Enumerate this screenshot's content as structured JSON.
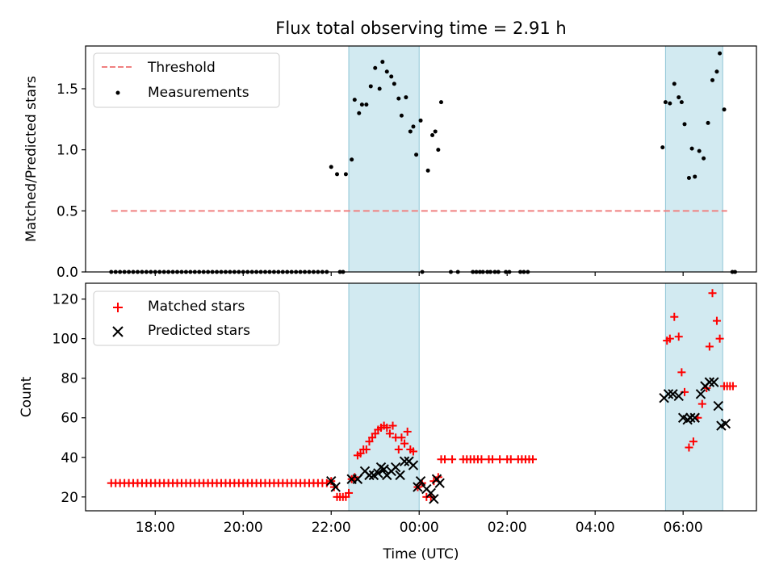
{
  "title": "Flux total observing time = 2.91 h",
  "xlabel": "Time (UTC)",
  "x_tick_labels": [
    "18:00",
    "20:00",
    "22:00",
    "00:00",
    "02:00",
    "04:00",
    "06:00"
  ],
  "colors": {
    "threshold": "#f08080",
    "measurement": "#000000",
    "matched": "#ff0000",
    "predicted": "#000000",
    "band": "#add8e6"
  },
  "chart_data": [
    {
      "type": "scatter",
      "ylabel": "Matched/Predicted stars",
      "xlim": [
        "16:25",
        "07:40"
      ],
      "ylim": [
        0,
        1.85
      ],
      "y_ticks": [
        0.0,
        0.5,
        1.0,
        1.5
      ],
      "y_tick_labels": [
        "0.0",
        "0.5",
        "1.0",
        "1.5"
      ],
      "legend_position": "top-left",
      "shaded_intervals": [
        [
          "22:24",
          "00:00"
        ],
        [
          "05:36",
          "06:54"
        ]
      ],
      "threshold": {
        "name": "Threshold",
        "value": 0.5,
        "x_range": [
          "17:00",
          "07:00"
        ]
      },
      "series": [
        {
          "name": "Measurements",
          "points": [
            [
              "22:00",
              0.86
            ],
            [
              "22:08",
              0.8
            ],
            [
              "22:20",
              0.8
            ],
            [
              "22:28",
              0.92
            ],
            [
              "22:32",
              1.41
            ],
            [
              "22:38",
              1.3
            ],
            [
              "22:42",
              1.37
            ],
            [
              "22:48",
              1.37
            ],
            [
              "22:54",
              1.52
            ],
            [
              "23:00",
              1.67
            ],
            [
              "23:06",
              1.5
            ],
            [
              "23:10",
              1.72
            ],
            [
              "23:16",
              1.64
            ],
            [
              "23:22",
              1.6
            ],
            [
              "23:26",
              1.54
            ],
            [
              "23:32",
              1.42
            ],
            [
              "23:36",
              1.28
            ],
            [
              "23:42",
              1.43
            ],
            [
              "23:48",
              1.15
            ],
            [
              "23:52",
              1.19
            ],
            [
              "23:56",
              0.96
            ],
            [
              "00:02",
              1.24
            ],
            [
              "00:12",
              0.83
            ],
            [
              "00:18",
              1.12
            ],
            [
              "00:22",
              1.15
            ],
            [
              "00:26",
              1.0
            ],
            [
              "00:30",
              1.39
            ],
            [
              "05:32",
              1.02
            ],
            [
              "05:36",
              1.39
            ],
            [
              "05:42",
              1.38
            ],
            [
              "05:48",
              1.54
            ],
            [
              "05:54",
              1.43
            ],
            [
              "05:58",
              1.39
            ],
            [
              "06:02",
              1.21
            ],
            [
              "06:08",
              0.77
            ],
            [
              "06:12",
              1.01
            ],
            [
              "06:16",
              0.78
            ],
            [
              "06:22",
              0.99
            ],
            [
              "06:28",
              0.93
            ],
            [
              "06:34",
              1.22
            ],
            [
              "06:40",
              1.57
            ],
            [
              "06:46",
              1.64
            ],
            [
              "06:50",
              1.79
            ],
            [
              "06:56",
              1.33
            ]
          ]
        }
      ]
    },
    {
      "type": "scatter",
      "ylabel": "Count",
      "xlim": [
        "16:25",
        "07:40"
      ],
      "ylim": [
        13,
        128
      ],
      "y_ticks": [
        20,
        40,
        60,
        80,
        100,
        120
      ],
      "y_tick_labels": [
        "20",
        "40",
        "60",
        "80",
        "100",
        "120"
      ],
      "legend_position": "top-left",
      "shaded_intervals": [
        [
          "22:24",
          "00:00"
        ],
        [
          "05:36",
          "06:54"
        ]
      ],
      "series": [
        {
          "name": "Matched stars",
          "marker": "+",
          "points": [
            [
              "22:00",
              28
            ],
            [
              "22:04",
              25
            ],
            [
              "22:08",
              20
            ],
            [
              "22:12",
              20
            ],
            [
              "22:16",
              20
            ],
            [
              "22:20",
              20
            ],
            [
              "22:24",
              22
            ],
            [
              "22:28",
              29
            ],
            [
              "22:32",
              30
            ],
            [
              "22:36",
              41
            ],
            [
              "22:40",
              42
            ],
            [
              "22:44",
              44
            ],
            [
              "22:48",
              44
            ],
            [
              "22:52",
              48
            ],
            [
              "22:56",
              50
            ],
            [
              "23:00",
              52
            ],
            [
              "23:04",
              54
            ],
            [
              "23:08",
              55
            ],
            [
              "23:12",
              56
            ],
            [
              "23:16",
              55
            ],
            [
              "23:20",
              52
            ],
            [
              "23:24",
              56
            ],
            [
              "23:28",
              50
            ],
            [
              "23:32",
              44
            ],
            [
              "23:36",
              50
            ],
            [
              "23:40",
              47
            ],
            [
              "23:44",
              53
            ],
            [
              "23:48",
              44
            ],
            [
              "23:52",
              43
            ],
            [
              "23:58",
              25
            ],
            [
              "00:04",
              27
            ],
            [
              "00:10",
              20
            ],
            [
              "00:16",
              20
            ],
            [
              "00:20",
              28
            ],
            [
              "00:26",
              30
            ],
            [
              "00:30",
              39
            ],
            [
              "00:35",
              39
            ],
            [
              "00:45",
              39
            ],
            [
              "01:00",
              39
            ],
            [
              "01:05",
              39
            ],
            [
              "01:10",
              39
            ],
            [
              "01:15",
              39
            ],
            [
              "01:20",
              39
            ],
            [
              "01:25",
              39
            ],
            [
              "01:35",
              39
            ],
            [
              "01:40",
              39
            ],
            [
              "01:50",
              39
            ],
            [
              "02:00",
              39
            ],
            [
              "02:05",
              39
            ],
            [
              "02:15",
              39
            ],
            [
              "02:20",
              39
            ],
            [
              "02:25",
              39
            ],
            [
              "02:30",
              39
            ],
            [
              "02:35",
              39
            ],
            [
              "05:38",
              99
            ],
            [
              "05:42",
              100
            ],
            [
              "05:48",
              111
            ],
            [
              "05:54",
              101
            ],
            [
              "05:58",
              83
            ],
            [
              "06:02",
              73
            ],
            [
              "06:08",
              45
            ],
            [
              "06:14",
              48
            ],
            [
              "06:20",
              60
            ],
            [
              "06:26",
              67
            ],
            [
              "06:32",
              75
            ],
            [
              "06:36",
              96
            ],
            [
              "06:40",
              123
            ],
            [
              "06:46",
              109
            ],
            [
              "06:50",
              100
            ],
            [
              "06:56",
              76
            ],
            [
              "07:00",
              76
            ],
            [
              "07:04",
              76
            ],
            [
              "07:08",
              76
            ]
          ]
        },
        {
          "name": "Predicted stars",
          "marker": "x",
          "points": [
            [
              "22:00",
              28
            ],
            [
              "22:06",
              25
            ],
            [
              "22:28",
              29
            ],
            [
              "22:36",
              29
            ],
            [
              "22:46",
              33
            ],
            [
              "22:52",
              31
            ],
            [
              "22:58",
              31
            ],
            [
              "23:04",
              32
            ],
            [
              "23:08",
              35
            ],
            [
              "23:12",
              34
            ],
            [
              "23:16",
              31
            ],
            [
              "23:22",
              33
            ],
            [
              "23:28",
              35
            ],
            [
              "23:34",
              31
            ],
            [
              "23:40",
              38
            ],
            [
              "23:46",
              38
            ],
            [
              "23:52",
              36
            ],
            [
              "23:58",
              25
            ],
            [
              "00:02",
              28
            ],
            [
              "00:10",
              24
            ],
            [
              "00:16",
              22
            ],
            [
              "00:20",
              19
            ],
            [
              "00:24",
              29
            ],
            [
              "00:28",
              27
            ],
            [
              "05:34",
              70
            ],
            [
              "05:40",
              72
            ],
            [
              "05:46",
              72
            ],
            [
              "05:54",
              71
            ],
            [
              "06:00",
              60
            ],
            [
              "06:06",
              59
            ],
            [
              "06:10",
              60
            ],
            [
              "06:16",
              60
            ],
            [
              "06:24",
              72
            ],
            [
              "06:30",
              76
            ],
            [
              "06:36",
              78
            ],
            [
              "06:42",
              78
            ],
            [
              "06:48",
              66
            ],
            [
              "06:52",
              56
            ],
            [
              "06:58",
              57
            ]
          ]
        }
      ]
    }
  ]
}
